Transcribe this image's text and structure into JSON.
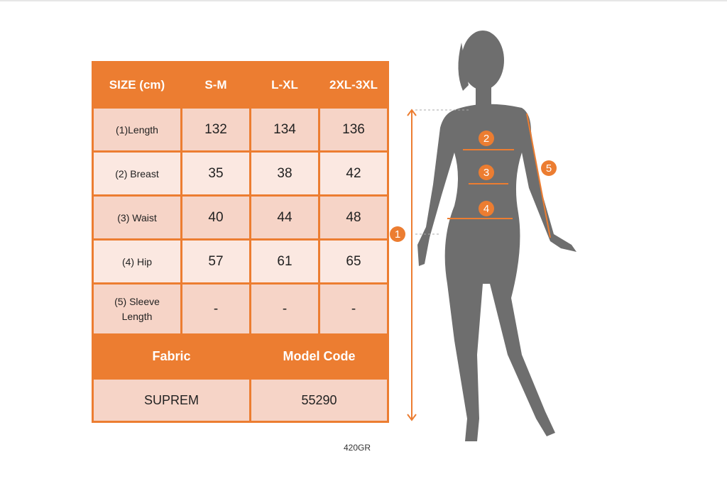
{
  "header": {
    "size_label": "SIZE (cm)",
    "sizes": [
      "S-M",
      "L-XL",
      "2XL-3XL"
    ]
  },
  "rows": [
    {
      "label": "(1)Length",
      "values": [
        "132",
        "134",
        "136"
      ]
    },
    {
      "label": "(2) Breast",
      "values": [
        "35",
        "38",
        "42"
      ]
    },
    {
      "label": "(3) Waist",
      "values": [
        "40",
        "44",
        "48"
      ]
    },
    {
      "label": "(4) Hip",
      "values": [
        "57",
        "61",
        "65"
      ]
    },
    {
      "label": "(5) Sleeve Length",
      "values": [
        "-",
        "-",
        "-"
      ]
    }
  ],
  "footer": {
    "fabric_label": "Fabric",
    "model_code_label": "Model Code",
    "fabric": "SUPREM",
    "model_code": "55290"
  },
  "product_code": "420GR",
  "figure": {
    "markers": [
      "1",
      "2",
      "3",
      "4",
      "5"
    ]
  },
  "colors": {
    "accent": "#ec7d31",
    "row_dark": "#f6d4c7",
    "row_light": "#fbe8e1",
    "silhouette": "#6e6e6e"
  }
}
